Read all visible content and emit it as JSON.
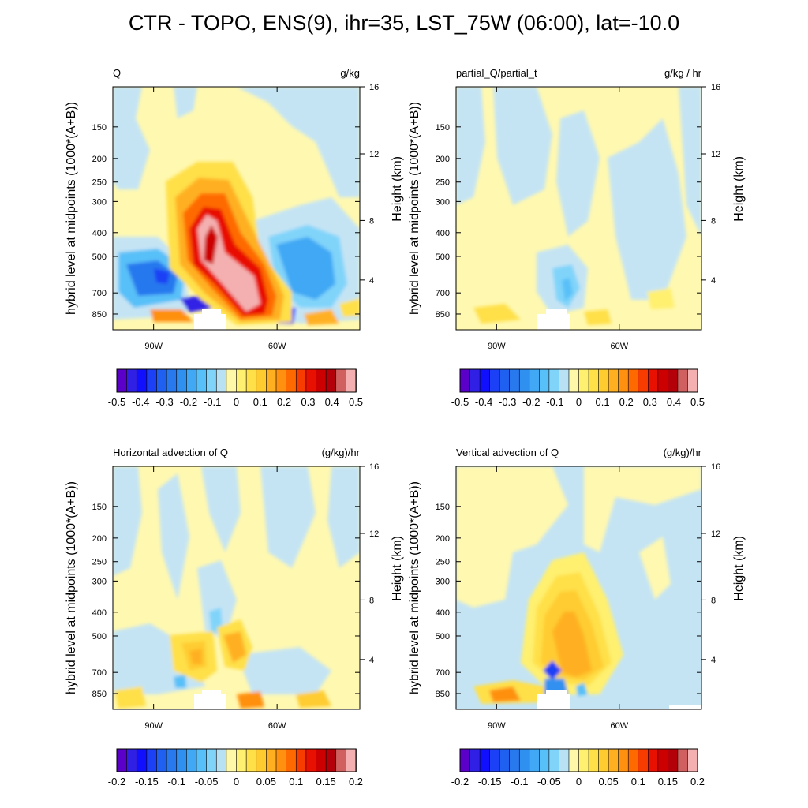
{
  "title": "CTR - TOPO, ENS(9), ihr=35, LST_75W (06:00), lat=-10.0",
  "colors": {
    "scale": [
      "#5a00c8",
      "#3020e6",
      "#1010ff",
      "#1c40f5",
      "#2060f0",
      "#2878ee",
      "#3090f0",
      "#40a8f4",
      "#58c0f8",
      "#80d4fa",
      "#b8e2f4",
      "#fff8a8",
      "#fff070",
      "#ffe048",
      "#ffcc30",
      "#ffb020",
      "#ff9010",
      "#ff6a00",
      "#f83c00",
      "#e81000",
      "#cc0000",
      "#b40008",
      "#d06060",
      "#f4b0b0"
    ],
    "background_negative": "#c4e4f4",
    "background_positive": "#fff8b0"
  },
  "panels": [
    {
      "id": "Q",
      "title_left": "Q",
      "title_right": "g/kg",
      "left_axis_label": "hybrid level at midpoints (1000*(A+B))",
      "right_axis_label": "Height (km)",
      "left_ticks": [
        "150",
        "200",
        "250",
        "300",
        "400",
        "500",
        "700",
        "850"
      ],
      "right_ticks": [
        "16",
        "12",
        "8",
        "4"
      ],
      "x_ticks": [
        "90W",
        "60W"
      ],
      "colorbar_labels": [
        "-0.5",
        "-0.4",
        "-0.3",
        "-0.2",
        "-0.1",
        "0",
        "0.1",
        "0.2",
        "0.3",
        "0.4",
        "0.5"
      ]
    },
    {
      "id": "dQdt",
      "title_left": "partial_Q/partial_t",
      "title_right": "g/kg / hr",
      "left_axis_label": "hybrid level at midpoints (1000*(A+B))",
      "right_axis_label": "Height (km)",
      "left_ticks": [
        "150",
        "200",
        "250",
        "300",
        "400",
        "500",
        "700",
        "850"
      ],
      "right_ticks": [
        "16",
        "12",
        "8",
        "4"
      ],
      "x_ticks": [
        "90W",
        "60W"
      ],
      "colorbar_labels": [
        "-0.5",
        "-0.4",
        "-0.3",
        "-0.2",
        "-0.1",
        "0",
        "0.1",
        "0.2",
        "0.3",
        "0.4",
        "0.5"
      ]
    },
    {
      "id": "hadv",
      "title_left": "Horizontal advection of Q",
      "title_right": "(g/kg)/hr",
      "left_axis_label": "hybrid level at midpoints (1000*(A+B))",
      "right_axis_label": "Height (km)",
      "left_ticks": [
        "150",
        "200",
        "250",
        "300",
        "400",
        "500",
        "700",
        "850"
      ],
      "right_ticks": [
        "16",
        "12",
        "8",
        "4"
      ],
      "x_ticks": [
        "90W",
        "60W"
      ],
      "colorbar_labels": [
        "-0.2",
        "-0.15",
        "-0.1",
        "-0.05",
        "0",
        "0.05",
        "0.1",
        "0.15",
        "0.2"
      ]
    },
    {
      "id": "vadv",
      "title_left": "Vertical advection of Q",
      "title_right": "(g/kg)/hr",
      "left_axis_label": "hybrid level at midpoints (1000*(A+B))",
      "right_axis_label": "Height (km)",
      "left_ticks": [
        "150",
        "200",
        "250",
        "300",
        "400",
        "500",
        "700",
        "850"
      ],
      "right_ticks": [
        "16",
        "12",
        "8",
        "4"
      ],
      "x_ticks": [
        "90W",
        "60W"
      ],
      "colorbar_labels": [
        "-0.2",
        "-0.15",
        "-0.1",
        "-0.05",
        "0",
        "0.05",
        "0.1",
        "0.15",
        "0.2"
      ]
    }
  ],
  "chart_data": [
    {
      "type": "heatmap",
      "title": "Q",
      "units": "g/kg",
      "x_ticks": [
        "90W",
        "60W"
      ],
      "y_left_ticks": [
        150,
        200,
        250,
        300,
        400,
        500,
        700,
        850
      ],
      "y_right_ticks_km": [
        4,
        8,
        12,
        16
      ],
      "colorbar_range": [
        -0.5,
        0.5
      ],
      "features": [
        {
          "sign": "positive",
          "peak": 0.5,
          "near_x": "~75W",
          "pressure_range": [
            300,
            900
          ]
        },
        {
          "sign": "negative",
          "peak": -0.45,
          "near_x": "~90W",
          "pressure_range": [
            500,
            850
          ]
        },
        {
          "sign": "negative",
          "peak": -0.3,
          "near_x": "~55W",
          "pressure_range": [
            300,
            850
          ]
        }
      ]
    },
    {
      "type": "heatmap",
      "title": "partial_Q/partial_t",
      "units": "g/kg / hr",
      "x_ticks": [
        "90W",
        "60W"
      ],
      "y_left_ticks": [
        150,
        200,
        250,
        300,
        400,
        500,
        700,
        850
      ],
      "y_right_ticks_km": [
        4,
        8,
        12,
        16
      ],
      "colorbar_range": [
        -0.5,
        0.5
      ],
      "features": [
        {
          "sign": "negative",
          "peak": -0.15,
          "near_x": "~73W",
          "pressure_range": [
            500,
            800
          ]
        },
        {
          "sign": "positive",
          "peak": 0.1,
          "near_x": "~85W",
          "pressure_range": [
            800,
            900
          ]
        }
      ]
    },
    {
      "type": "heatmap",
      "title": "Horizontal advection of Q",
      "units": "(g/kg)/hr",
      "x_ticks": [
        "90W",
        "60W"
      ],
      "y_left_ticks": [
        150,
        200,
        250,
        300,
        400,
        500,
        700,
        850
      ],
      "y_right_ticks_km": [
        4,
        8,
        12,
        16
      ],
      "colorbar_range": [
        -0.2,
        0.2
      ],
      "features": [
        {
          "sign": "positive",
          "peak": 0.08,
          "near_x": "~82W",
          "pressure_range": [
            500,
            750
          ]
        },
        {
          "sign": "positive",
          "peak": 0.08,
          "near_x": "~70W",
          "pressure_range": [
            450,
            700
          ]
        },
        {
          "sign": "negative",
          "peak": -0.06,
          "near_x": "~78W",
          "pressure_range": [
            350,
            550
          ]
        }
      ]
    },
    {
      "type": "heatmap",
      "title": "Vertical advection of Q",
      "units": "(g/kg)/hr",
      "x_ticks": [
        "90W",
        "60W"
      ],
      "y_left_ticks": [
        150,
        200,
        250,
        300,
        400,
        500,
        700,
        850
      ],
      "y_right_ticks_km": [
        4,
        8,
        12,
        16
      ],
      "colorbar_range": [
        -0.2,
        0.2
      ],
      "features": [
        {
          "sign": "positive",
          "peak": 0.1,
          "near_x": "~73W",
          "pressure_range": [
            300,
            800
          ]
        },
        {
          "sign": "negative",
          "peak": -0.15,
          "near_x": "~76W",
          "pressure_range": [
            650,
            850
          ]
        }
      ]
    }
  ]
}
